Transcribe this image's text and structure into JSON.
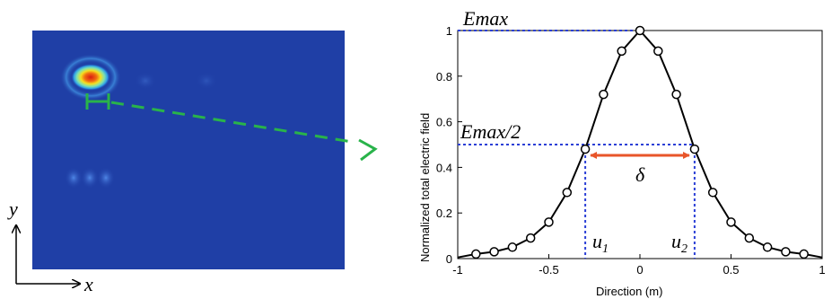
{
  "field_map": {
    "axes": {
      "x_label": "x",
      "y_label": "y"
    },
    "colors": {
      "background": "#1f3fa6",
      "hot": "#d81b12",
      "warm": "#f5e020",
      "cool": "#2fd0e0",
      "marker": "#29b34a"
    }
  },
  "annotations": {
    "emax": "Emax",
    "emax_half": "Emax/2",
    "delta": "δ",
    "u1_base": "u",
    "u1_sub": "1",
    "u2_base": "u",
    "u2_sub": "2"
  },
  "chart_data": {
    "type": "line",
    "xlabel": "Direction (m)",
    "ylabel": "Normalized total electric field",
    "xlim": [
      -1,
      1
    ],
    "ylim": [
      0,
      1
    ],
    "xticks": [
      -1,
      -0.5,
      0,
      0.5,
      1
    ],
    "xtick_labels": [
      "-1",
      "-0.5",
      "0",
      "0.5",
      "1"
    ],
    "yticks": [
      0,
      0.2,
      0.4,
      0.6,
      0.8,
      1
    ],
    "ytick_labels": [
      "0",
      "0.2",
      "0.4",
      "0.6",
      "0.8",
      "1"
    ],
    "grid": false,
    "series": [
      {
        "x": [
          -0.9,
          -0.8,
          -0.7,
          -0.6,
          -0.5,
          -0.4,
          -0.3,
          0.3,
          0.4,
          0.5,
          0.6,
          0.7,
          0.8,
          0.9
        ],
        "y": [
          0.02,
          0.03,
          0.05,
          0.09,
          0.16,
          0.29,
          0.48,
          0.48,
          0.29,
          0.16,
          0.09,
          0.05,
          0.03,
          0.02
        ]
      }
    ],
    "marked_points": {
      "x": [
        -0.2,
        -0.1,
        0,
        0.1,
        0.2
      ],
      "y": [
        0.72,
        0.91,
        1.0,
        0.91,
        0.72
      ]
    },
    "u1": -0.3,
    "u2": 0.3,
    "half_max": 0.5,
    "max": 1.0,
    "colors": {
      "line": "#000000",
      "dotted": "#2b3fd6",
      "arrow": "#e8552a"
    }
  }
}
